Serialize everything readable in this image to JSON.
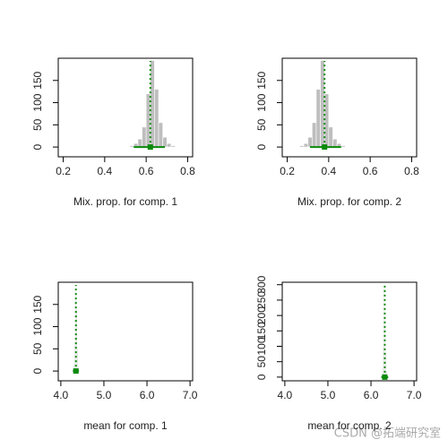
{
  "chart_data": [
    {
      "type": "histogram",
      "xlabel": "Mix. prop. for comp. 1",
      "color": "#bebebe",
      "mean_color": "#0a8a0a",
      "bins": [
        0.52,
        0.54,
        0.56,
        0.58,
        0.6,
        0.62,
        0.64,
        0.66,
        0.68,
        0.7,
        0.72,
        0.74
      ],
      "counts": [
        3,
        8,
        18,
        45,
        120,
        195,
        130,
        55,
        22,
        8,
        3
      ],
      "mean": 0.62,
      "interval": [
        0.54,
        0.69
      ],
      "xlim": [
        0.176,
        0.824
      ],
      "xticks": [
        0.2,
        0.4,
        0.6,
        0.8
      ],
      "ylim": [
        -22,
        200
      ],
      "yticks": [
        0,
        50,
        100,
        150
      ]
    },
    {
      "type": "histogram",
      "xlabel": "Mix. prop. for comp. 2",
      "color": "#bebebe",
      "mean_color": "#0a8a0a",
      "bins": [
        0.26,
        0.28,
        0.3,
        0.32,
        0.34,
        0.36,
        0.38,
        0.4,
        0.42,
        0.44,
        0.46,
        0.48
      ],
      "counts": [
        3,
        8,
        22,
        55,
        130,
        195,
        120,
        45,
        18,
        8,
        3
      ],
      "mean": 0.38,
      "interval": [
        0.31,
        0.46
      ],
      "xlim": [
        0.176,
        0.824
      ],
      "xticks": [
        0.2,
        0.4,
        0.6,
        0.8
      ],
      "ylim": [
        -22,
        200
      ],
      "yticks": [
        0,
        50,
        100,
        150
      ]
    },
    {
      "type": "histogram",
      "xlabel": "mean for comp. 1",
      "color": "#bebebe",
      "mean_color": "#0a8a0a",
      "bins": [
        4.26,
        4.28,
        4.3,
        4.32,
        4.34,
        4.36,
        4.38,
        4.4,
        4.42,
        4.44
      ],
      "counts": [
        2,
        5,
        15,
        60,
        180,
        140,
        50,
        12,
        3
      ],
      "mean": 4.35,
      "interval": [
        4.28,
        4.42
      ],
      "xlim": [
        3.94,
        7.06
      ],
      "xticks": [
        {
          "value": 4,
          "label": "4.0"
        },
        {
          "value": 5,
          "label": "5.0"
        },
        {
          "value": 6,
          "label": "6.0"
        },
        {
          "value": 7,
          "label": "7.0"
        }
      ],
      "ylim": [
        -22,
        200
      ],
      "yticks": [
        0,
        50,
        100,
        150
      ]
    },
    {
      "type": "histogram",
      "xlabel": "mean for comp. 2",
      "color": "#bebebe",
      "mean_color": "#0a8a0a",
      "bins": [
        6.22,
        6.24,
        6.26,
        6.28,
        6.3,
        6.32,
        6.34,
        6.36,
        6.38,
        6.4
      ],
      "counts": [
        3,
        10,
        30,
        100,
        290,
        210,
        80,
        20,
        5
      ],
      "mean": 6.32,
      "interval": [
        6.24,
        6.4
      ],
      "xlim": [
        3.94,
        7.06
      ],
      "xticks": [
        {
          "value": 4,
          "label": "4.0"
        },
        {
          "value": 5,
          "label": "5.0"
        },
        {
          "value": 6,
          "label": "6.0"
        },
        {
          "value": 7,
          "label": "7.0"
        }
      ],
      "ylim": [
        -12,
        308
      ],
      "yticks": [
        0,
        50,
        100,
        150,
        200,
        250,
        300
      ]
    }
  ],
  "watermark": "CSDN @拓端研究室"
}
